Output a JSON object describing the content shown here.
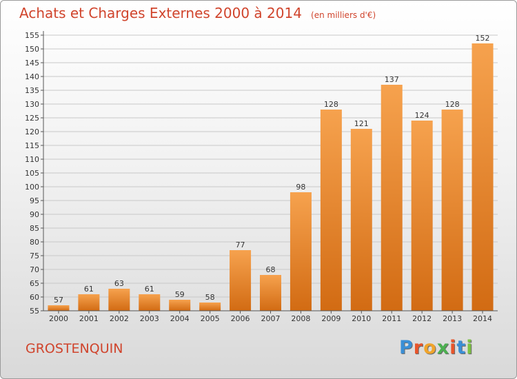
{
  "header": {
    "title": "Achats et Charges Externes 2000 à 2014",
    "subtitle": "(en milliers d'€)"
  },
  "footer": {
    "town": "GROSTENQUIN",
    "logo": "Proxiti"
  },
  "colors": {
    "bar_top": "#f6a24e",
    "bar_bottom": "#d26b13",
    "title": "#d0442c"
  },
  "chart_data": {
    "type": "bar",
    "title": "Achats et Charges Externes 2000 à 2014",
    "subtitle": "(en milliers d'€)",
    "categories": [
      "2000",
      "2001",
      "2002",
      "2003",
      "2004",
      "2005",
      "2006",
      "2007",
      "2008",
      "2009",
      "2010",
      "2011",
      "2012",
      "2013",
      "2014"
    ],
    "values": [
      57,
      61,
      63,
      61,
      59,
      58,
      77,
      68,
      98,
      128,
      121,
      137,
      124,
      128,
      152
    ],
    "ylim": [
      55,
      155
    ],
    "yticks": [
      55,
      60,
      65,
      70,
      75,
      80,
      85,
      90,
      95,
      100,
      105,
      110,
      115,
      120,
      125,
      130,
      135,
      140,
      145,
      150,
      155
    ],
    "grid": true,
    "xlabel": "",
    "ylabel": ""
  }
}
